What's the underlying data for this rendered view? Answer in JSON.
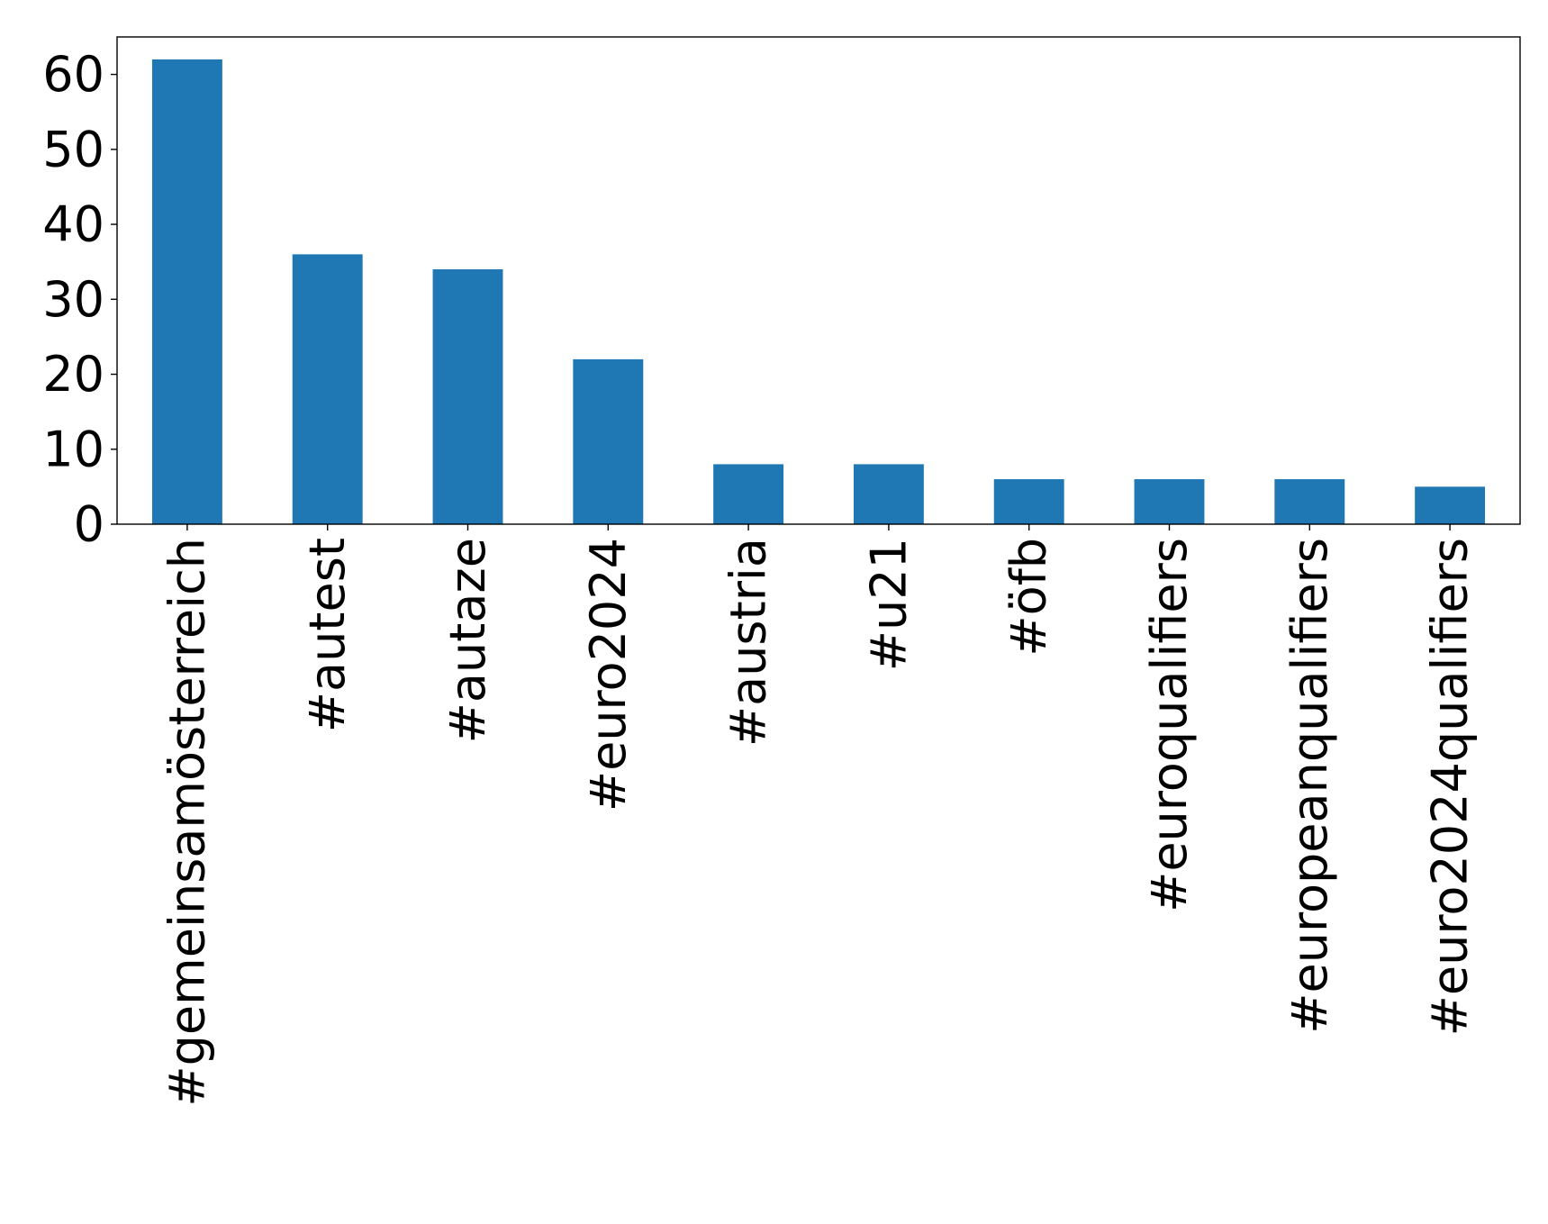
{
  "chart_data": {
    "type": "bar",
    "title": "",
    "xlabel": "",
    "ylabel": "",
    "categories": [
      "#gemeinsamösterreich",
      "#autest",
      "#autaze",
      "#euro2024",
      "#austria",
      "#u21",
      "#öfb",
      "#euroqualifiers",
      "#europeanqualifiers",
      "#euro2024qualifiers"
    ],
    "values": [
      62,
      36,
      34,
      22,
      8,
      8,
      6,
      6,
      6,
      5
    ],
    "ylim": [
      0,
      65
    ],
    "yticks": [
      0,
      10,
      20,
      30,
      40,
      50,
      60
    ],
    "grid": false,
    "legend": "none",
    "bar_color": "#1f77b4"
  }
}
